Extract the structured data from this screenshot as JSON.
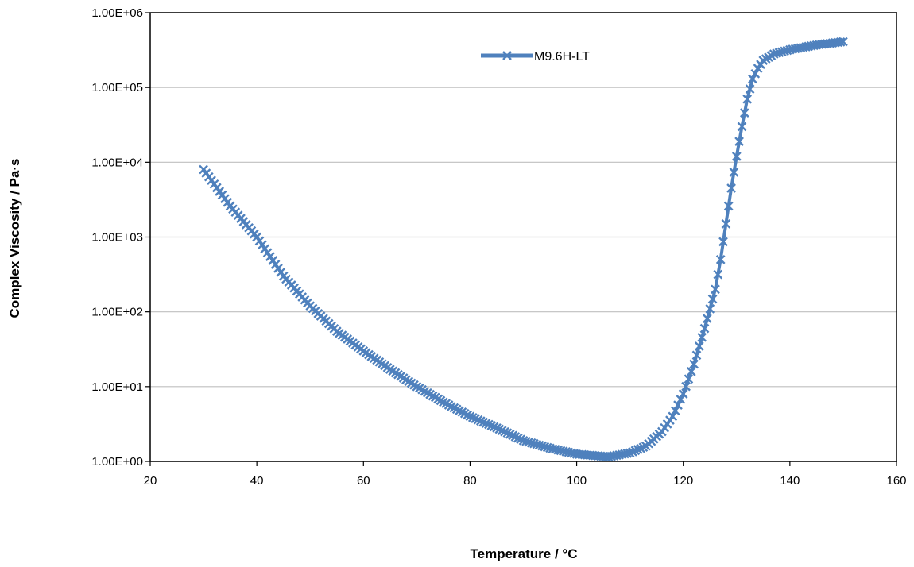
{
  "chart_data": {
    "type": "line",
    "title": "",
    "xlabel": "Temperature / °C",
    "ylabel": "Complex Viscosity / Pa·s",
    "xlim": [
      20,
      160
    ],
    "ylim": [
      1,
      1000000
    ],
    "y_scale": "log",
    "x_ticks": [
      "20",
      "40",
      "60",
      "80",
      "100",
      "120",
      "140",
      "160"
    ],
    "y_ticks": [
      "1.00E+00",
      "1.00E+01",
      "1.00E+02",
      "1.00E+03",
      "1.00E+04",
      "1.00E+05",
      "1.00E+06"
    ],
    "grid": "horizontal",
    "legend_position": "top-center",
    "series": [
      {
        "name": "M9.6H-LT",
        "color": "#4F81BD",
        "marker": "x",
        "x": [
          30,
          35,
          40,
          45,
          50,
          55,
          60,
          65,
          70,
          75,
          80,
          85,
          90,
          95,
          100,
          103,
          106,
          110,
          113,
          116,
          118,
          120,
          122,
          124,
          126,
          127,
          128,
          129,
          130,
          131,
          132,
          133,
          134,
          135,
          137,
          140,
          145,
          150
        ],
        "y": [
          8000,
          2600,
          1000,
          300,
          120,
          55,
          30,
          17,
          10,
          6.2,
          4.0,
          2.8,
          1.9,
          1.5,
          1.25,
          1.2,
          1.15,
          1.3,
          1.6,
          2.5,
          4.0,
          8.0,
          20,
          60,
          200,
          500,
          1500,
          4500,
          12000,
          30000,
          70000,
          130000,
          180000,
          230000,
          280000,
          320000,
          370000,
          410000
        ]
      }
    ]
  }
}
